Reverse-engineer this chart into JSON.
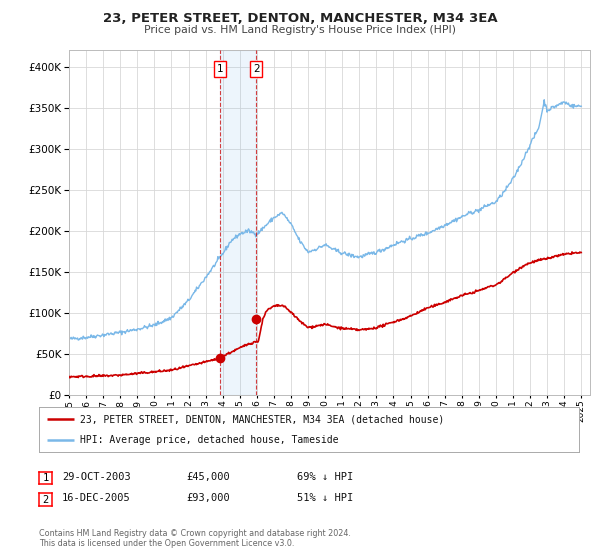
{
  "title": "23, PETER STREET, DENTON, MANCHESTER, M34 3EA",
  "subtitle": "Price paid vs. HM Land Registry's House Price Index (HPI)",
  "ylim": [
    0,
    420000
  ],
  "xlim_start": 1995.0,
  "xlim_end": 2025.5,
  "background_color": "#ffffff",
  "plot_bg_color": "#ffffff",
  "grid_color": "#d8d8d8",
  "hpi_color": "#7ab8e8",
  "price_color": "#cc0000",
  "sale1_date": 2003.83,
  "sale1_price": 45000,
  "sale2_date": 2005.96,
  "sale2_price": 93000,
  "legend_label_price": "23, PETER STREET, DENTON, MANCHESTER, M34 3EA (detached house)",
  "legend_label_hpi": "HPI: Average price, detached house, Tameside",
  "sale1_text": "29-OCT-2003",
  "sale1_amount": "£45,000",
  "sale1_hpi": "69% ↓ HPI",
  "sale2_text": "16-DEC-2005",
  "sale2_amount": "£93,000",
  "sale2_hpi": "51% ↓ HPI",
  "footer1": "Contains HM Land Registry data © Crown copyright and database right 2024.",
  "footer2": "This data is licensed under the Open Government Licence v3.0."
}
